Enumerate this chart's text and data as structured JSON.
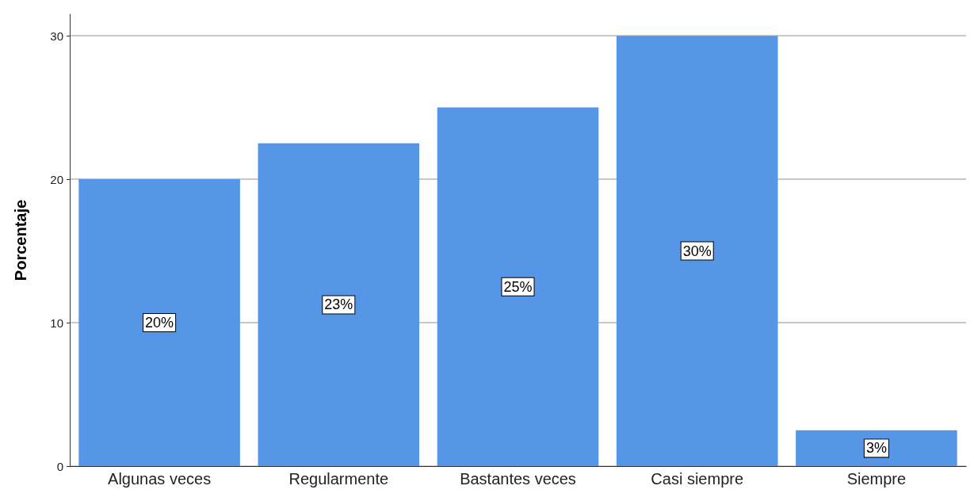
{
  "chart_data": {
    "type": "bar",
    "ylabel": "Porcentaje",
    "categories": [
      "Algunas veces",
      "Regularmente",
      "Bastantes veces",
      "Casi siempre",
      "Siempre"
    ],
    "values": [
      20,
      22.5,
      25,
      30,
      2.5
    ],
    "value_labels": [
      "20%",
      "23%",
      "25%",
      "30%",
      "3%"
    ],
    "color": "#5596e6",
    "ylim": [
      0,
      31.5
    ],
    "yticks": [
      0,
      10,
      20,
      30
    ],
    "grid": "y"
  }
}
